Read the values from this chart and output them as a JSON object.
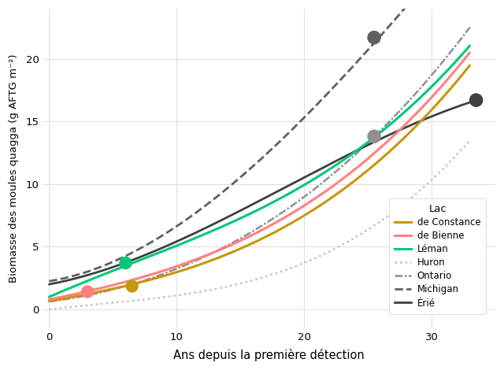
{
  "xlabel": "Ans depuis la première détection",
  "ylabel": "Biomasse des moules quagga (g AFTG m⁻²)",
  "xlim": [
    -0.5,
    35
  ],
  "ylim": [
    -1.5,
    24
  ],
  "yticks": [
    0,
    5,
    10,
    15,
    20
  ],
  "xticks": [
    0,
    10,
    20,
    30
  ],
  "background_color": "#ffffff",
  "panel_color": "#ffffff",
  "grid_color": "#e0e0e0",
  "legend_title": "Lac",
  "curves": {
    "de Constance": {
      "x_pts": [
        0,
        6.5,
        15,
        25,
        33
      ],
      "y_pts": [
        0.7,
        1.85,
        5.0,
        11.0,
        19.5
      ],
      "color": "#C8960C",
      "ls": "solid",
      "lw": 2.2,
      "dot": [
        6.5,
        1.85
      ],
      "dot_color": "#C8960C",
      "dot_size": 140
    },
    "de Bienne": {
      "x_pts": [
        0,
        3,
        15,
        25,
        33
      ],
      "y_pts": [
        0.8,
        1.4,
        5.5,
        12.0,
        20.5
      ],
      "color": "#FF8080",
      "ls": "solid",
      "lw": 2.2,
      "dot": [
        3.0,
        1.4
      ],
      "dot_color": "#FF8080",
      "dot_size": 140
    },
    "Léman": {
      "x_pts": [
        0,
        6,
        15,
        25,
        33
      ],
      "y_pts": [
        0.9,
        3.7,
        7.0,
        13.5,
        21.0
      ],
      "color": "#00C878",
      "ls": "solid",
      "lw": 2.2,
      "dot": [
        6.0,
        3.7
      ],
      "dot_color": "#00C878",
      "dot_size": 140
    },
    "Huron": {
      "x_pts": [
        0,
        8,
        18,
        28,
        33
      ],
      "y_pts": [
        0.0,
        0.8,
        3.0,
        8.5,
        13.5
      ],
      "color": "#C0C0C0",
      "ls": "dotted",
      "lw": 1.8,
      "dot": null,
      "dot_color": null,
      "dot_size": 0
    },
    "Ontario": {
      "x_pts": [
        0,
        8,
        18,
        25.5,
        33
      ],
      "y_pts": [
        0.6,
        2.5,
        7.5,
        13.8,
        22.5
      ],
      "color": "#909090",
      "ls": "dashdot",
      "lw": 1.8,
      "dot": [
        25.5,
        13.8
      ],
      "dot_color": "#909090",
      "dot_size": 160
    },
    "Michigan": {
      "x_pts": [
        0,
        8,
        18,
        25.5,
        28.5
      ],
      "y_pts": [
        2.2,
        5.5,
        13.0,
        21.7,
        24.5
      ],
      "color": "#606060",
      "ls": "dashed",
      "lw": 2.0,
      "dot": [
        25.5,
        21.7
      ],
      "dot_color": "#606060",
      "dot_size": 160
    },
    "Érié": {
      "x_pts": [
        0,
        8,
        18,
        28,
        33.5
      ],
      "y_pts": [
        2.0,
        4.5,
        9.5,
        14.5,
        16.7
      ],
      "color": "#404040",
      "ls": "solid",
      "lw": 2.0,
      "dot": [
        33.5,
        16.7
      ],
      "dot_color": "#404040",
      "dot_size": 160
    }
  },
  "draw_order": [
    "Huron",
    "Ontario",
    "Michigan",
    "Érié",
    "de Constance",
    "de Bienne",
    "Léman"
  ],
  "legend_order": [
    "de Constance",
    "de Bienne",
    "Léman",
    "Huron",
    "Ontario",
    "Michigan",
    "Érié"
  ]
}
